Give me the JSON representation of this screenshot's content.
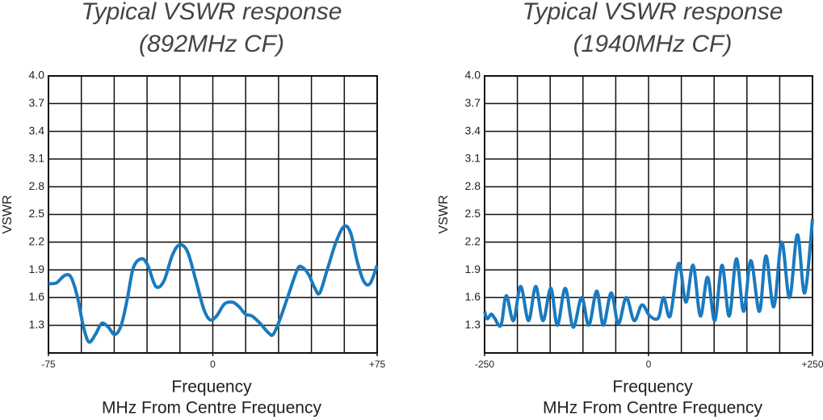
{
  "chart_data": [
    {
      "type": "line",
      "title": "Typical VSWR response",
      "subtitle": "(892MHz CF)",
      "ylabel": "VSWR",
      "xlabel": "Frequency",
      "xlabel2": "MHz From Centre Frequency",
      "xlim": [
        -75,
        75
      ],
      "xticks": [
        -75,
        0,
        {
          "value": 75,
          "label": "+75"
        }
      ],
      "ylim": [
        1.0,
        4.0
      ],
      "yticks": [
        1.3,
        1.6,
        1.9,
        2.2,
        2.5,
        2.8,
        3.1,
        3.4,
        3.7,
        {
          "value": 4.0,
          "label": "4.0"
        }
      ],
      "grid": true,
      "series": [
        {
          "color": "#1a7abf",
          "x": [
            -75,
            -71.3,
            -67.6,
            -64.7,
            -61.7,
            -59.2,
            -56.6,
            -53.6,
            -50.7,
            -47.7,
            -44.8,
            -41.8,
            -38.9,
            -36.3,
            -32.6,
            -29.7,
            -26,
            -22.3,
            -18.6,
            -15.3,
            -11.6,
            -7.9,
            -4.2,
            -1.3,
            1.7,
            5.3,
            9,
            12,
            14.9,
            17.9,
            21.6,
            25.3,
            27.5,
            30.4,
            34.1,
            38.5,
            40.7,
            43.7,
            46.6,
            48.8,
            52.2,
            56.2,
            59.9,
            62.9,
            65.8,
            68.8,
            71.7,
            75
          ],
          "values": [
            1.75,
            1.76,
            1.84,
            1.82,
            1.6,
            1.3,
            1.12,
            1.2,
            1.32,
            1.28,
            1.2,
            1.3,
            1.6,
            1.92,
            2.02,
            1.95,
            1.72,
            1.78,
            2.05,
            2.17,
            2.1,
            1.8,
            1.48,
            1.36,
            1.4,
            1.53,
            1.55,
            1.5,
            1.42,
            1.4,
            1.32,
            1.22,
            1.2,
            1.35,
            1.6,
            1.9,
            1.93,
            1.85,
            1.7,
            1.65,
            1.9,
            2.2,
            2.37,
            2.3,
            2.0,
            1.78,
            1.75,
            1.95
          ]
        }
      ]
    },
    {
      "type": "line",
      "title": "Typical VSWR response",
      "subtitle": "(1940MHz CF)",
      "ylabel": "VSWR",
      "xlabel": "Frequency",
      "xlabel2": "MHz From Centre Frequency",
      "xlim": [
        -250,
        250
      ],
      "xticks": [
        -250,
        0,
        {
          "value": 250,
          "label": "+250"
        }
      ],
      "ylim": [
        1.0,
        4.0
      ],
      "yticks": [
        1.3,
        1.6,
        1.9,
        2.2,
        2.5,
        2.8,
        3.1,
        3.4,
        3.7,
        {
          "value": 4.0,
          "label": "4.0"
        }
      ],
      "grid": true,
      "series": [
        {
          "color": "#1a7abf",
          "x": [
            -250,
            -246,
            -240,
            -235,
            -225,
            -217,
            -206,
            -195,
            -183,
            -172,
            -161,
            -149,
            -139,
            -127,
            -115,
            -102,
            -91,
            -79,
            -69,
            -57,
            -46,
            -34,
            -22,
            -10,
            2,
            15,
            23,
            33,
            46,
            57,
            68,
            79,
            90,
            101,
            112,
            123,
            134,
            145,
            156,
            169,
            179,
            191,
            203,
            215,
            227,
            238,
            250
          ],
          "values": [
            1.45,
            1.37,
            1.42,
            1.38,
            1.3,
            1.62,
            1.35,
            1.72,
            1.35,
            1.72,
            1.35,
            1.7,
            1.3,
            1.7,
            1.28,
            1.6,
            1.3,
            1.67,
            1.3,
            1.65,
            1.32,
            1.6,
            1.35,
            1.52,
            1.4,
            1.38,
            1.6,
            1.4,
            1.97,
            1.55,
            1.95,
            1.4,
            1.82,
            1.35,
            1.95,
            1.4,
            2.02,
            1.45,
            2.0,
            1.45,
            2.05,
            1.5,
            2.2,
            1.6,
            2.28,
            1.65,
            2.45
          ]
        }
      ]
    }
  ]
}
